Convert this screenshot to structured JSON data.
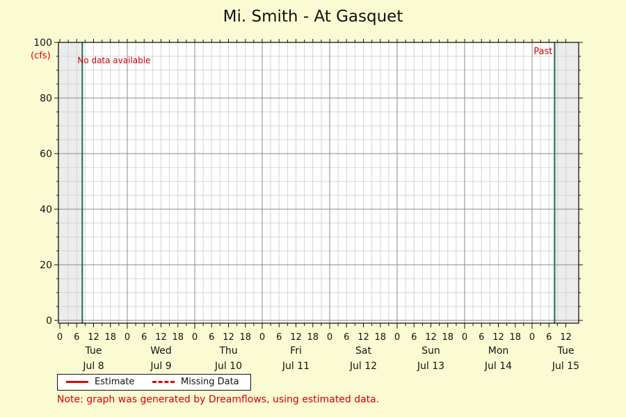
{
  "chart_data": {
    "type": "line",
    "title": "Mi. Smith - At Gasquet",
    "ylabel": "(cfs)",
    "ylim": [
      0,
      100
    ],
    "yticks": [
      0,
      20,
      40,
      60,
      80,
      100
    ],
    "xlim_hours": [
      0,
      180
    ],
    "hour_tick_labels": [
      "0",
      "6",
      "12",
      "18"
    ],
    "days": [
      {
        "dow": "Tue",
        "date": "Jul 8"
      },
      {
        "dow": "Wed",
        "date": "Jul 9"
      },
      {
        "dow": "Thu",
        "date": "Jul 10"
      },
      {
        "dow": "Fri",
        "date": "Jul 11"
      },
      {
        "dow": "Sat",
        "date": "Jul 12"
      },
      {
        "dow": "Sun",
        "date": "Jul 13"
      },
      {
        "dow": "Mon",
        "date": "Jul 14"
      },
      {
        "dow": "Tue",
        "date": "Jul 15"
      }
    ],
    "series": [],
    "markers": [
      {
        "label": "No data available",
        "hour": 8
      },
      {
        "label": "Past",
        "hour": 176
      }
    ],
    "legend": [
      {
        "label": "Estimate",
        "style": "solid"
      },
      {
        "label": "Missing Data",
        "style": "dashed"
      }
    ],
    "legend_position": "bottom-left",
    "grid": true,
    "colors": {
      "marker": "#1f6b50",
      "series": "#e00000",
      "text_red": "#d40000",
      "background": "#fbfbd3"
    }
  },
  "note": "Note: graph was generated by Dreamflows, using estimated data."
}
